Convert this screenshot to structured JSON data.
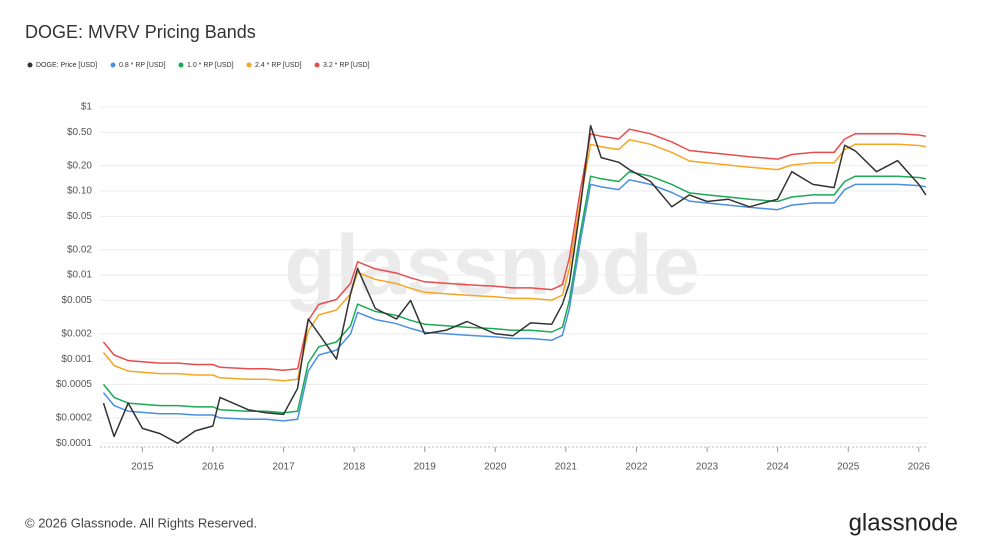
{
  "chart_data": {
    "type": "line",
    "title": "DOGE: MVRV Pricing Bands",
    "log_scale": true,
    "grid": true,
    "xlim": [
      2014.4,
      2026.13
    ],
    "xticks": [
      2015,
      2016,
      2017,
      2018,
      2019,
      2020,
      2021,
      2022,
      2023,
      2024,
      2025,
      2026
    ],
    "ylim": [
      9e-05,
      1
    ],
    "yticks": [
      {
        "value": 1,
        "label": "$1"
      },
      {
        "value": 0.5,
        "label": "$0.50"
      },
      {
        "value": 0.2,
        "label": "$0.20"
      },
      {
        "value": 0.1,
        "label": "$0.10"
      },
      {
        "value": 0.05,
        "label": "$0.05"
      },
      {
        "value": 0.02,
        "label": "$0.02"
      },
      {
        "value": 0.01,
        "label": "$0.01"
      },
      {
        "value": 0.005,
        "label": "$0.005"
      },
      {
        "value": 0.002,
        "label": "$0.002"
      },
      {
        "value": 0.001,
        "label": "$0.001"
      },
      {
        "value": 0.0005,
        "label": "$0.0005"
      },
      {
        "value": 0.0002,
        "label": "$0.0002"
      },
      {
        "value": 0.0001,
        "label": "$0.0001"
      }
    ],
    "x": [
      2014.45,
      2014.6,
      2014.8,
      2015.0,
      2015.25,
      2015.5,
      2015.75,
      2016.0,
      2016.1,
      2016.5,
      2016.75,
      2017.0,
      2017.2,
      2017.35,
      2017.5,
      2017.75,
      2017.95,
      2018.05,
      2018.3,
      2018.6,
      2018.8,
      2019.0,
      2019.3,
      2019.6,
      2020.0,
      2020.25,
      2020.5,
      2020.8,
      2020.95,
      2021.05,
      2021.2,
      2021.35,
      2021.5,
      2021.75,
      2021.9,
      2022.2,
      2022.5,
      2022.75,
      2023.0,
      2023.3,
      2023.6,
      2024.0,
      2024.2,
      2024.5,
      2024.8,
      2024.95,
      2025.1,
      2025.4,
      2025.7,
      2026.0,
      2026.1
    ],
    "series": [
      {
        "name": "3.2 * RP [USD]",
        "color": "#e84c4c",
        "values": [
          0.0016,
          0.00112,
          0.00096,
          0.000928,
          0.000896,
          0.000896,
          0.000864,
          0.000864,
          0.0008,
          0.000768,
          0.000768,
          0.000736,
          0.000768,
          0.00288,
          0.00448,
          0.00512,
          0.008,
          0.0144,
          0.01184,
          0.01056,
          0.00928,
          0.00832,
          0.008,
          0.00768,
          0.00736,
          0.00704,
          0.00704,
          0.00672,
          0.00768,
          0.016,
          0.096,
          0.48,
          0.448,
          0.416,
          0.544,
          0.48,
          0.384,
          0.304,
          0.288,
          0.272,
          0.256,
          0.24,
          0.272,
          0.288,
          0.288,
          0.416,
          0.48,
          0.48,
          0.48,
          0.464,
          0.448
        ]
      },
      {
        "name": "2.4 * RP [USD]",
        "color": "#f5a623",
        "values": [
          0.0012,
          0.00084,
          0.00072,
          0.000696,
          0.000672,
          0.000672,
          0.000648,
          0.000648,
          0.0006,
          0.000576,
          0.000576,
          0.000552,
          0.000576,
          0.00216,
          0.00336,
          0.00384,
          0.006,
          0.0108,
          0.00888,
          0.00792,
          0.00696,
          0.00624,
          0.006,
          0.00576,
          0.00552,
          0.00528,
          0.00528,
          0.00504,
          0.00576,
          0.012,
          0.072,
          0.36,
          0.336,
          0.312,
          0.408,
          0.36,
          0.288,
          0.228,
          0.216,
          0.204,
          0.192,
          0.18,
          0.204,
          0.216,
          0.216,
          0.312,
          0.36,
          0.36,
          0.36,
          0.348,
          0.336
        ]
      },
      {
        "name": "1.0 * RP [USD]",
        "color": "#1aaa55",
        "values": [
          0.0005,
          0.00035,
          0.0003,
          0.00029,
          0.00028,
          0.00028,
          0.00027,
          0.00027,
          0.00025,
          0.00024,
          0.00024,
          0.00023,
          0.00024,
          0.0009,
          0.0014,
          0.0016,
          0.0025,
          0.0045,
          0.0037,
          0.0033,
          0.0029,
          0.0026,
          0.0025,
          0.0024,
          0.0023,
          0.0022,
          0.0022,
          0.0021,
          0.0024,
          0.005,
          0.03,
          0.15,
          0.14,
          0.13,
          0.17,
          0.15,
          0.12,
          0.095,
          0.09,
          0.085,
          0.08,
          0.075,
          0.085,
          0.09,
          0.09,
          0.13,
          0.15,
          0.15,
          0.15,
          0.145,
          0.14
        ]
      },
      {
        "name": "0.8 * RP [USD]",
        "color": "#4a90e2",
        "values": [
          0.0004,
          0.00028,
          0.00024,
          0.000232,
          0.000224,
          0.000224,
          0.000216,
          0.000216,
          0.0002,
          0.000192,
          0.000192,
          0.000184,
          0.000192,
          0.00072,
          0.00112,
          0.00128,
          0.002,
          0.0036,
          0.00296,
          0.00264,
          0.00232,
          0.00208,
          0.002,
          0.00192,
          0.00184,
          0.00176,
          0.00176,
          0.00168,
          0.00192,
          0.004,
          0.024,
          0.12,
          0.112,
          0.104,
          0.136,
          0.12,
          0.096,
          0.076,
          0.072,
          0.068,
          0.064,
          0.06,
          0.068,
          0.072,
          0.072,
          0.104,
          0.12,
          0.12,
          0.12,
          0.116,
          0.112
        ]
      },
      {
        "name": "DOGE: Price [USD]",
        "color": "#333333",
        "values": [
          0.0003,
          0.00012,
          0.0003,
          0.00015,
          0.00013,
          0.0001,
          0.00014,
          0.00016,
          0.00035,
          0.00025,
          0.00023,
          0.00022,
          0.00045,
          0.003,
          0.002,
          0.001,
          0.006,
          0.012,
          0.004,
          0.003,
          0.005,
          0.002,
          0.0022,
          0.0028,
          0.002,
          0.0019,
          0.0027,
          0.0026,
          0.0045,
          0.008,
          0.06,
          0.6,
          0.25,
          0.22,
          0.18,
          0.13,
          0.065,
          0.09,
          0.075,
          0.08,
          0.065,
          0.08,
          0.17,
          0.12,
          0.11,
          0.35,
          0.3,
          0.17,
          0.23,
          0.12,
          0.09
        ]
      }
    ],
    "legend_order": [
      4,
      3,
      2,
      1,
      0
    ],
    "watermark": "glassnode",
    "footer": "© 2026 Glassnode. All Rights Reserved.",
    "logo": "glassnode"
  }
}
